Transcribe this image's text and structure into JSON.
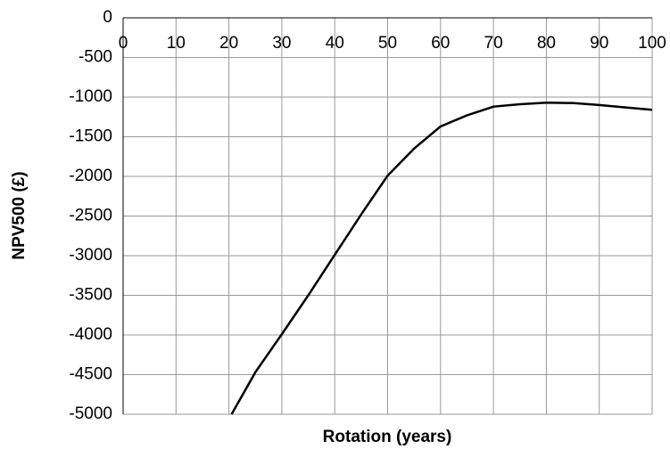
{
  "chart_data": {
    "type": "line",
    "x_label": "Rotation (years)",
    "y_label": "NPV500 (£)",
    "x": [
      20.5,
      25,
      30,
      35,
      40,
      45,
      50,
      55,
      60,
      65,
      70,
      75,
      80,
      85,
      90,
      95,
      100
    ],
    "series": [
      {
        "name": "NPV500",
        "color": "#000000",
        "values": [
          -5000,
          -4470,
          -3990,
          -3500,
          -2990,
          -2480,
          -1990,
          -1650,
          -1370,
          -1230,
          -1120,
          -1090,
          -1070,
          -1075,
          -1100,
          -1130,
          -1160
        ]
      }
    ],
    "xlim": [
      0,
      100
    ],
    "xticks": [
      0,
      10,
      20,
      30,
      40,
      50,
      60,
      70,
      80,
      90,
      100
    ],
    "ylim": [
      -5000,
      0
    ],
    "yticks": [
      0,
      -500,
      -1000,
      -1500,
      -2000,
      -2500,
      -3000,
      -3500,
      -4000,
      -4500,
      -5000
    ],
    "grid": true
  }
}
